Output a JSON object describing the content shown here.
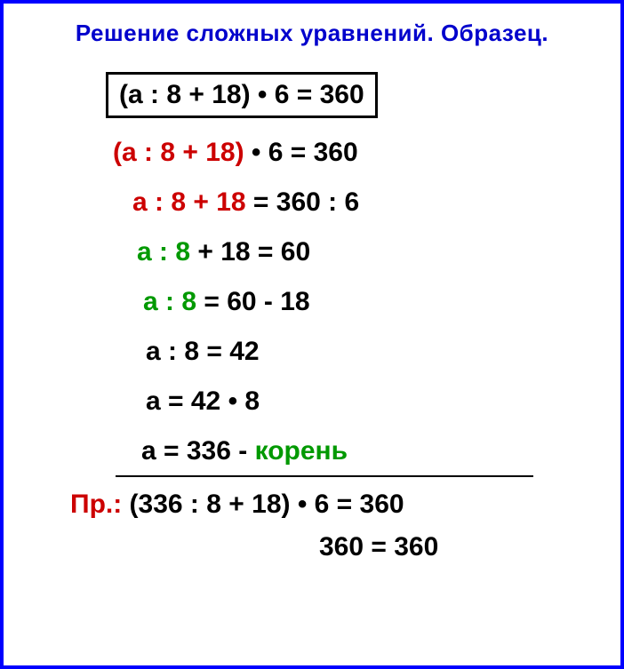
{
  "title": "Решение сложных уравнений. Образец.",
  "colors": {
    "border": "#0000ff",
    "title": "#0000cc",
    "red": "#cc0000",
    "green": "#009900",
    "black": "#000000",
    "background": "#ffffff"
  },
  "typography": {
    "title_fontsize": 26,
    "body_fontsize": 30,
    "font_weight": "bold",
    "font_family": "Arial"
  },
  "divide_symbol": ":",
  "multiply_symbol": "•",
  "boxed_equation": "(a : 8 + 18) • 6 = 360",
  "step1": {
    "highlight": "(a : 8 + 18)",
    "rest": " • 6 = 360",
    "highlight_color": "#cc0000"
  },
  "step2": {
    "highlight": "a : 8 + 18",
    "rest": " = 360 : 6",
    "highlight_color": "#cc0000"
  },
  "step3": {
    "highlight": "a : 8",
    "mid": " + 18",
    "rest": "  = 60",
    "highlight_color": "#009900"
  },
  "step4": {
    "highlight": "a : 8",
    "rest": " = 60 - 18",
    "highlight_color": "#009900"
  },
  "step5": "a : 8 = 42",
  "step6": "a = 42 • 8",
  "step7": {
    "lead": "a = 336 - ",
    "root_word": "корень",
    "root_color": "#009900"
  },
  "check": {
    "label": "Пр.:",
    "label_color": "#cc0000",
    "expr": " (336 : 8 + 18) • 6 = 360",
    "result": "360 = 360"
  }
}
